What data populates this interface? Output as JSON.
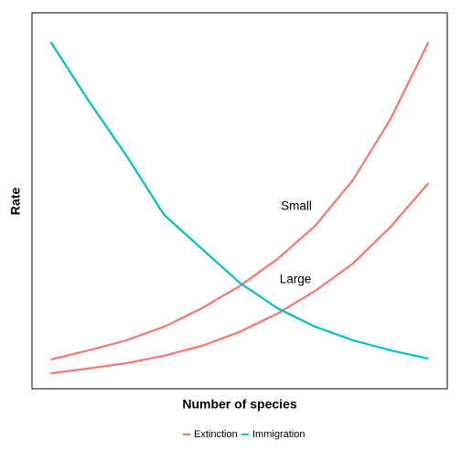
{
  "chart_data": {
    "type": "line",
    "xlabel": "Number of species",
    "ylabel": "Rate",
    "x": [
      0,
      1,
      2,
      3,
      4,
      5,
      6,
      7,
      8,
      9,
      10
    ],
    "xlim": [
      -0.5,
      10.5
    ],
    "ylim": [
      0,
      100
    ],
    "grid": false,
    "series": [
      {
        "name": "Small",
        "color": "#F8766D",
        "values": [
          7.8,
          10.2,
          12.9,
          16.5,
          21.4,
          27.3,
          34.5,
          43.3,
          55.5,
          71.8,
          92.2
        ]
      },
      {
        "name": "Large",
        "color": "#F8766D",
        "values": [
          4.1,
          5.4,
          6.8,
          8.8,
          11.4,
          15.1,
          20.0,
          26.0,
          33.3,
          43.1,
          54.7
        ]
      },
      {
        "name": "Immigration",
        "color": "#00BFC4",
        "values": [
          92.2,
          76.6,
          62.0,
          46.2,
          37.2,
          28.2,
          21.4,
          16.5,
          12.9,
          10.2,
          8.0
        ]
      }
    ],
    "legend": [
      {
        "label": "Extinction",
        "color": "#F8766D"
      },
      {
        "label": "Immigration",
        "color": "#00BFC4"
      }
    ],
    "legend_position": "bottom"
  }
}
